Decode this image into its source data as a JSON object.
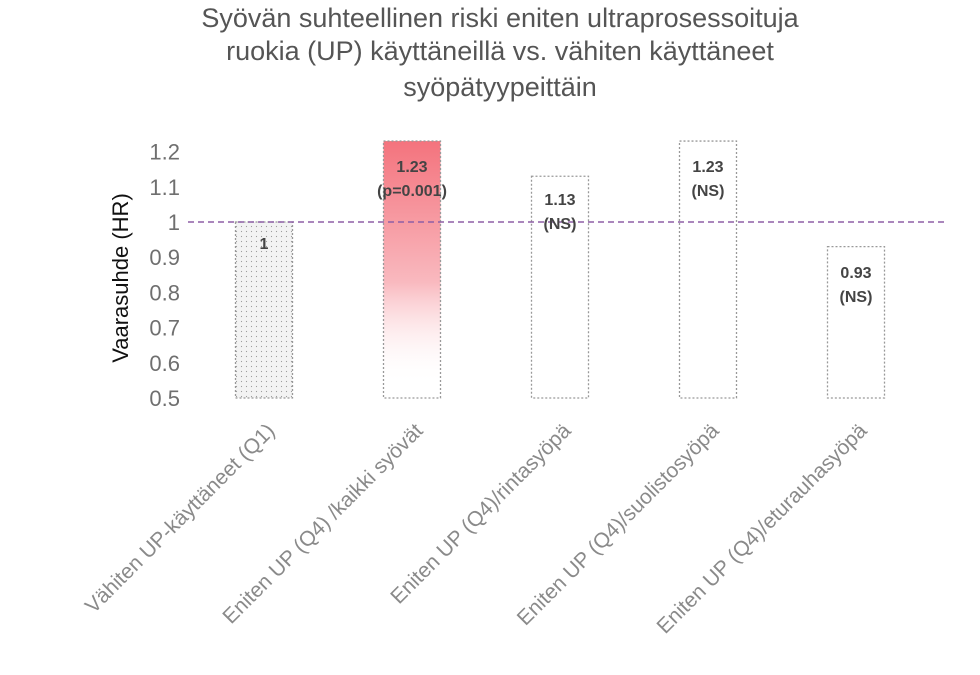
{
  "chart_data": {
    "type": "bar",
    "title_lines": [
      "Syövän suhteellinen riski eniten ultraprosessoituja",
      "ruokia (UP) käyttäneillä vs. vähiten käyttäneet",
      "syöpätyypeittäin"
    ],
    "ylabel": "Vaarasuhde (HR)",
    "xlabel": "",
    "ylim": [
      0.5,
      1.25
    ],
    "yticks": [
      "0.5",
      "0.6",
      "0.7",
      "0.8",
      "0.9",
      "1",
      "1.1",
      "1.2"
    ],
    "reference_line": 1,
    "categories": [
      "Vähiten UP-käyttäneet (Q1)",
      "Eniten UP (Q4) /kaikki syövät",
      "Eniten UP (Q4)/rintasyöpä",
      "Eniten UP (Q4)/suolistosyöpä",
      "Eniten UP (Q4)/eturauhasyöpä"
    ],
    "values": [
      1,
      1.23,
      1.13,
      1.23,
      0.93
    ],
    "data_labels": [
      [
        "1"
      ],
      [
        "1.23",
        "(p=0.001)"
      ],
      [
        "1.13",
        "(NS)"
      ],
      [
        "1.23",
        "(NS)"
      ],
      [
        "0.93",
        "(NS)"
      ]
    ],
    "colors": {
      "highlight": "#f4737d",
      "reference_line": "#8d5fa6",
      "bar_border": "#999999",
      "reference_bar_fill": "#f3f3f3"
    },
    "grid": false
  }
}
